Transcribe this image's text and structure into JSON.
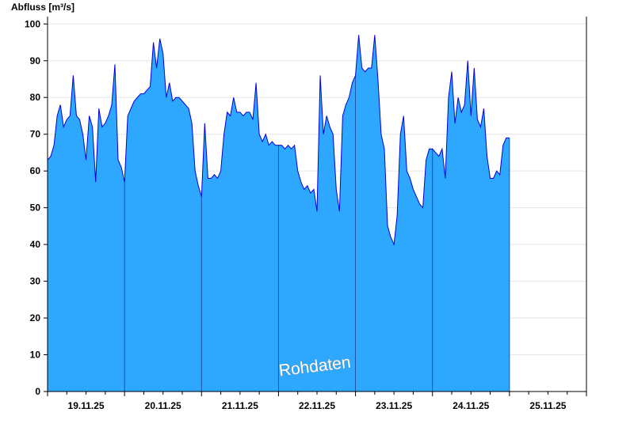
{
  "chart_data": {
    "type": "area",
    "y_label": "Abfluss [m³/s]",
    "annotation": "Rohdaten",
    "categories": [
      "19.11.25",
      "20.11.25",
      "21.11.25",
      "22.11.25",
      "23.11.25",
      "24.11.25",
      "25.11.25"
    ],
    "values": [
      [
        63,
        64,
        67,
        75,
        78,
        72,
        74,
        75,
        86,
        75,
        74,
        70,
        63,
        75,
        72,
        57,
        77,
        72,
        73,
        75,
        78,
        89,
        63,
        61
      ],
      [
        57,
        75,
        77,
        79,
        80,
        81,
        81,
        82,
        83,
        95,
        88,
        96,
        92,
        80,
        84,
        79,
        80,
        80,
        79,
        78,
        77,
        73,
        60,
        56
      ],
      [
        53,
        73,
        58,
        58,
        59,
        58,
        60,
        70,
        76,
        75,
        80,
        76,
        76,
        75,
        76,
        76,
        74,
        84,
        70,
        68,
        70,
        67,
        68,
        67
      ],
      [
        67,
        67,
        66,
        67,
        66,
        67,
        60,
        57,
        55,
        56,
        54,
        55,
        49,
        86,
        70,
        75,
        72,
        70,
        55,
        49,
        75,
        78,
        80,
        84
      ],
      [
        86,
        97,
        88,
        87,
        88,
        88,
        97,
        85,
        70,
        66,
        45,
        42,
        40,
        48,
        70,
        75,
        60,
        58,
        55,
        53,
        51,
        50,
        63,
        66
      ],
      [
        66,
        65,
        64,
        66,
        58,
        80,
        87,
        73,
        80,
        76,
        78,
        90,
        75,
        88,
        74,
        72,
        77,
        64,
        58,
        58,
        60,
        59,
        67,
        69
      ],
      [
        69,
        null,
        null,
        null,
        null,
        null,
        null,
        null,
        null,
        null,
        null,
        null,
        null,
        null,
        null,
        null,
        null,
        null,
        null,
        null,
        null,
        null,
        null,
        null
      ]
    ],
    "color": "#2ea8ff",
    "line_color": "#0000dd",
    "ylim": [
      0,
      102
    ],
    "yticks": [
      0,
      10,
      20,
      30,
      40,
      50,
      60,
      70,
      80,
      90,
      100
    ],
    "grid": true
  }
}
